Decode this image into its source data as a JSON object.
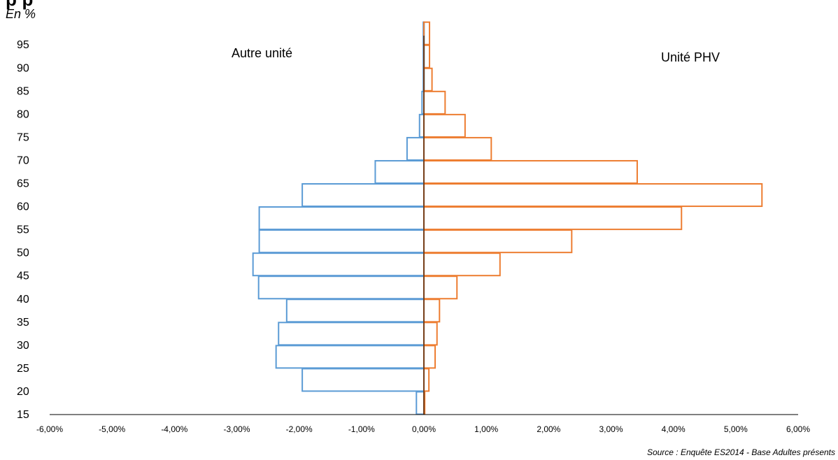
{
  "header": {
    "title_fragment": "p                                  p",
    "unit_label": "En %"
  },
  "footer": {
    "source": "Source : Enquête ES2014 - Base Adultes présents"
  },
  "chart_data": {
    "type": "bar",
    "orientation": "horizontal-pyramid",
    "y_ticks": [
      "15",
      "20",
      "25",
      "30",
      "35",
      "40",
      "45",
      "50",
      "55",
      "60",
      "65",
      "70",
      "75",
      "80",
      "85",
      "90",
      "95"
    ],
    "x_ticks": [
      "-6,00%",
      "-5,00%",
      "-4,00%",
      "-3,00%",
      "-2,00%",
      "-1,00%",
      "0,00%",
      "1,00%",
      "2,00%",
      "3,00%",
      "4,00%",
      "5,00%",
      "6,00%"
    ],
    "xlim": [
      -6,
      6
    ],
    "ylim": [
      15,
      97
    ],
    "grid": false,
    "age_bins_start": [
      15,
      20,
      25,
      30,
      35,
      40,
      45,
      50,
      55,
      60,
      65,
      70,
      75,
      80,
      85,
      90,
      95
    ],
    "series": [
      {
        "name": "Autre unité",
        "color": "#5B9BD5",
        "values": [
          -0.12,
          -1.95,
          -2.37,
          -2.33,
          -2.2,
          -2.65,
          -2.74,
          -2.64,
          -2.64,
          -1.95,
          -0.78,
          -0.27,
          -0.07,
          -0.03,
          -0.01,
          -0.01,
          -0.01
        ]
      },
      {
        "name": "Unité PHV",
        "color": "#ED7D31",
        "values": [
          0.01,
          0.08,
          0.18,
          0.21,
          0.25,
          0.53,
          1.22,
          2.37,
          4.13,
          5.42,
          3.42,
          1.08,
          0.66,
          0.34,
          0.13,
          0.09,
          0.09
        ]
      }
    ]
  }
}
